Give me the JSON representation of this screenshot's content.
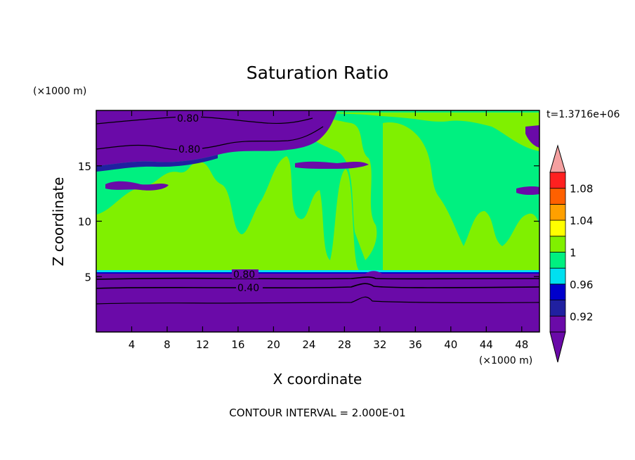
{
  "chart_data": {
    "type": "heatmap",
    "title": "Saturation Ratio",
    "xlabel": "X coordinate",
    "ylabel": "Z coordinate",
    "x_unit": "(×1000 m)",
    "y_unit": "(×1000 m)",
    "time_label": "t=1.3716e+06",
    "footer": "CONTOUR INTERVAL = 2.000E-01",
    "xlim": [
      0,
      50
    ],
    "ylim": [
      0,
      20
    ],
    "x_ticks": [
      "4",
      "8",
      "12",
      "16",
      "20",
      "24",
      "28",
      "32",
      "36",
      "40",
      "44",
      "48"
    ],
    "y_ticks": [
      "5",
      "10",
      "15"
    ],
    "contour_labels": [
      "0.80",
      "0.80",
      "0.80",
      "0.40"
    ],
    "colorbar": {
      "tick_labels": [
        "0.92",
        "0.96",
        "1",
        "1.04",
        "1.08"
      ],
      "boundaries": [
        0.9,
        0.92,
        0.94,
        0.96,
        0.98,
        1.0,
        1.02,
        1.04,
        1.06,
        1.08,
        1.1
      ],
      "colors": [
        "#6a0aa8",
        "#2020a0",
        "#0000cc",
        "#00e0f0",
        "#00f080",
        "#80f000",
        "#ffff00",
        "#ffa000",
        "#ff6000",
        "#ff2020"
      ],
      "under_color": "#6a0aa8",
      "over_color": "#f4a0a0"
    }
  }
}
